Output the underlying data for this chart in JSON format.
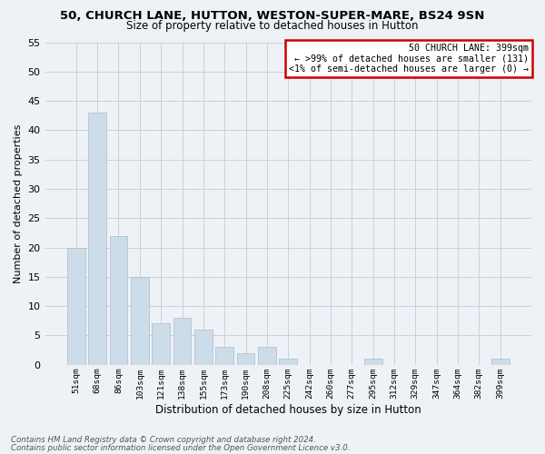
{
  "title_line1": "50, CHURCH LANE, HUTTON, WESTON-SUPER-MARE, BS24 9SN",
  "title_line2": "Size of property relative to detached houses in Hutton",
  "xlabel": "Distribution of detached houses by size in Hutton",
  "ylabel": "Number of detached properties",
  "categories": [
    "51sqm",
    "68sqm",
    "86sqm",
    "103sqm",
    "121sqm",
    "138sqm",
    "155sqm",
    "173sqm",
    "190sqm",
    "208sqm",
    "225sqm",
    "242sqm",
    "260sqm",
    "277sqm",
    "295sqm",
    "312sqm",
    "329sqm",
    "347sqm",
    "364sqm",
    "382sqm",
    "399sqm"
  ],
  "values": [
    20,
    43,
    22,
    15,
    7,
    8,
    6,
    3,
    2,
    3,
    1,
    0,
    0,
    0,
    1,
    0,
    0,
    0,
    0,
    0,
    1
  ],
  "bar_color": "#ccdce8",
  "bar_edgecolor": "#aabccc",
  "annotation_title": "50 CHURCH LANE: 399sqm",
  "annotation_line1": "← >99% of detached houses are smaller (131)",
  "annotation_line2": "<1% of semi-detached houses are larger (0) →",
  "annotation_box_edgecolor": "#cc0000",
  "ylim": [
    0,
    55
  ],
  "yticks": [
    0,
    5,
    10,
    15,
    20,
    25,
    30,
    35,
    40,
    45,
    50,
    55
  ],
  "footer_line1": "Contains HM Land Registry data © Crown copyright and database right 2024.",
  "footer_line2": "Contains public sector information licensed under the Open Government Licence v3.0.",
  "bg_color": "#eef2f6",
  "grid_color": "#c8d0da"
}
